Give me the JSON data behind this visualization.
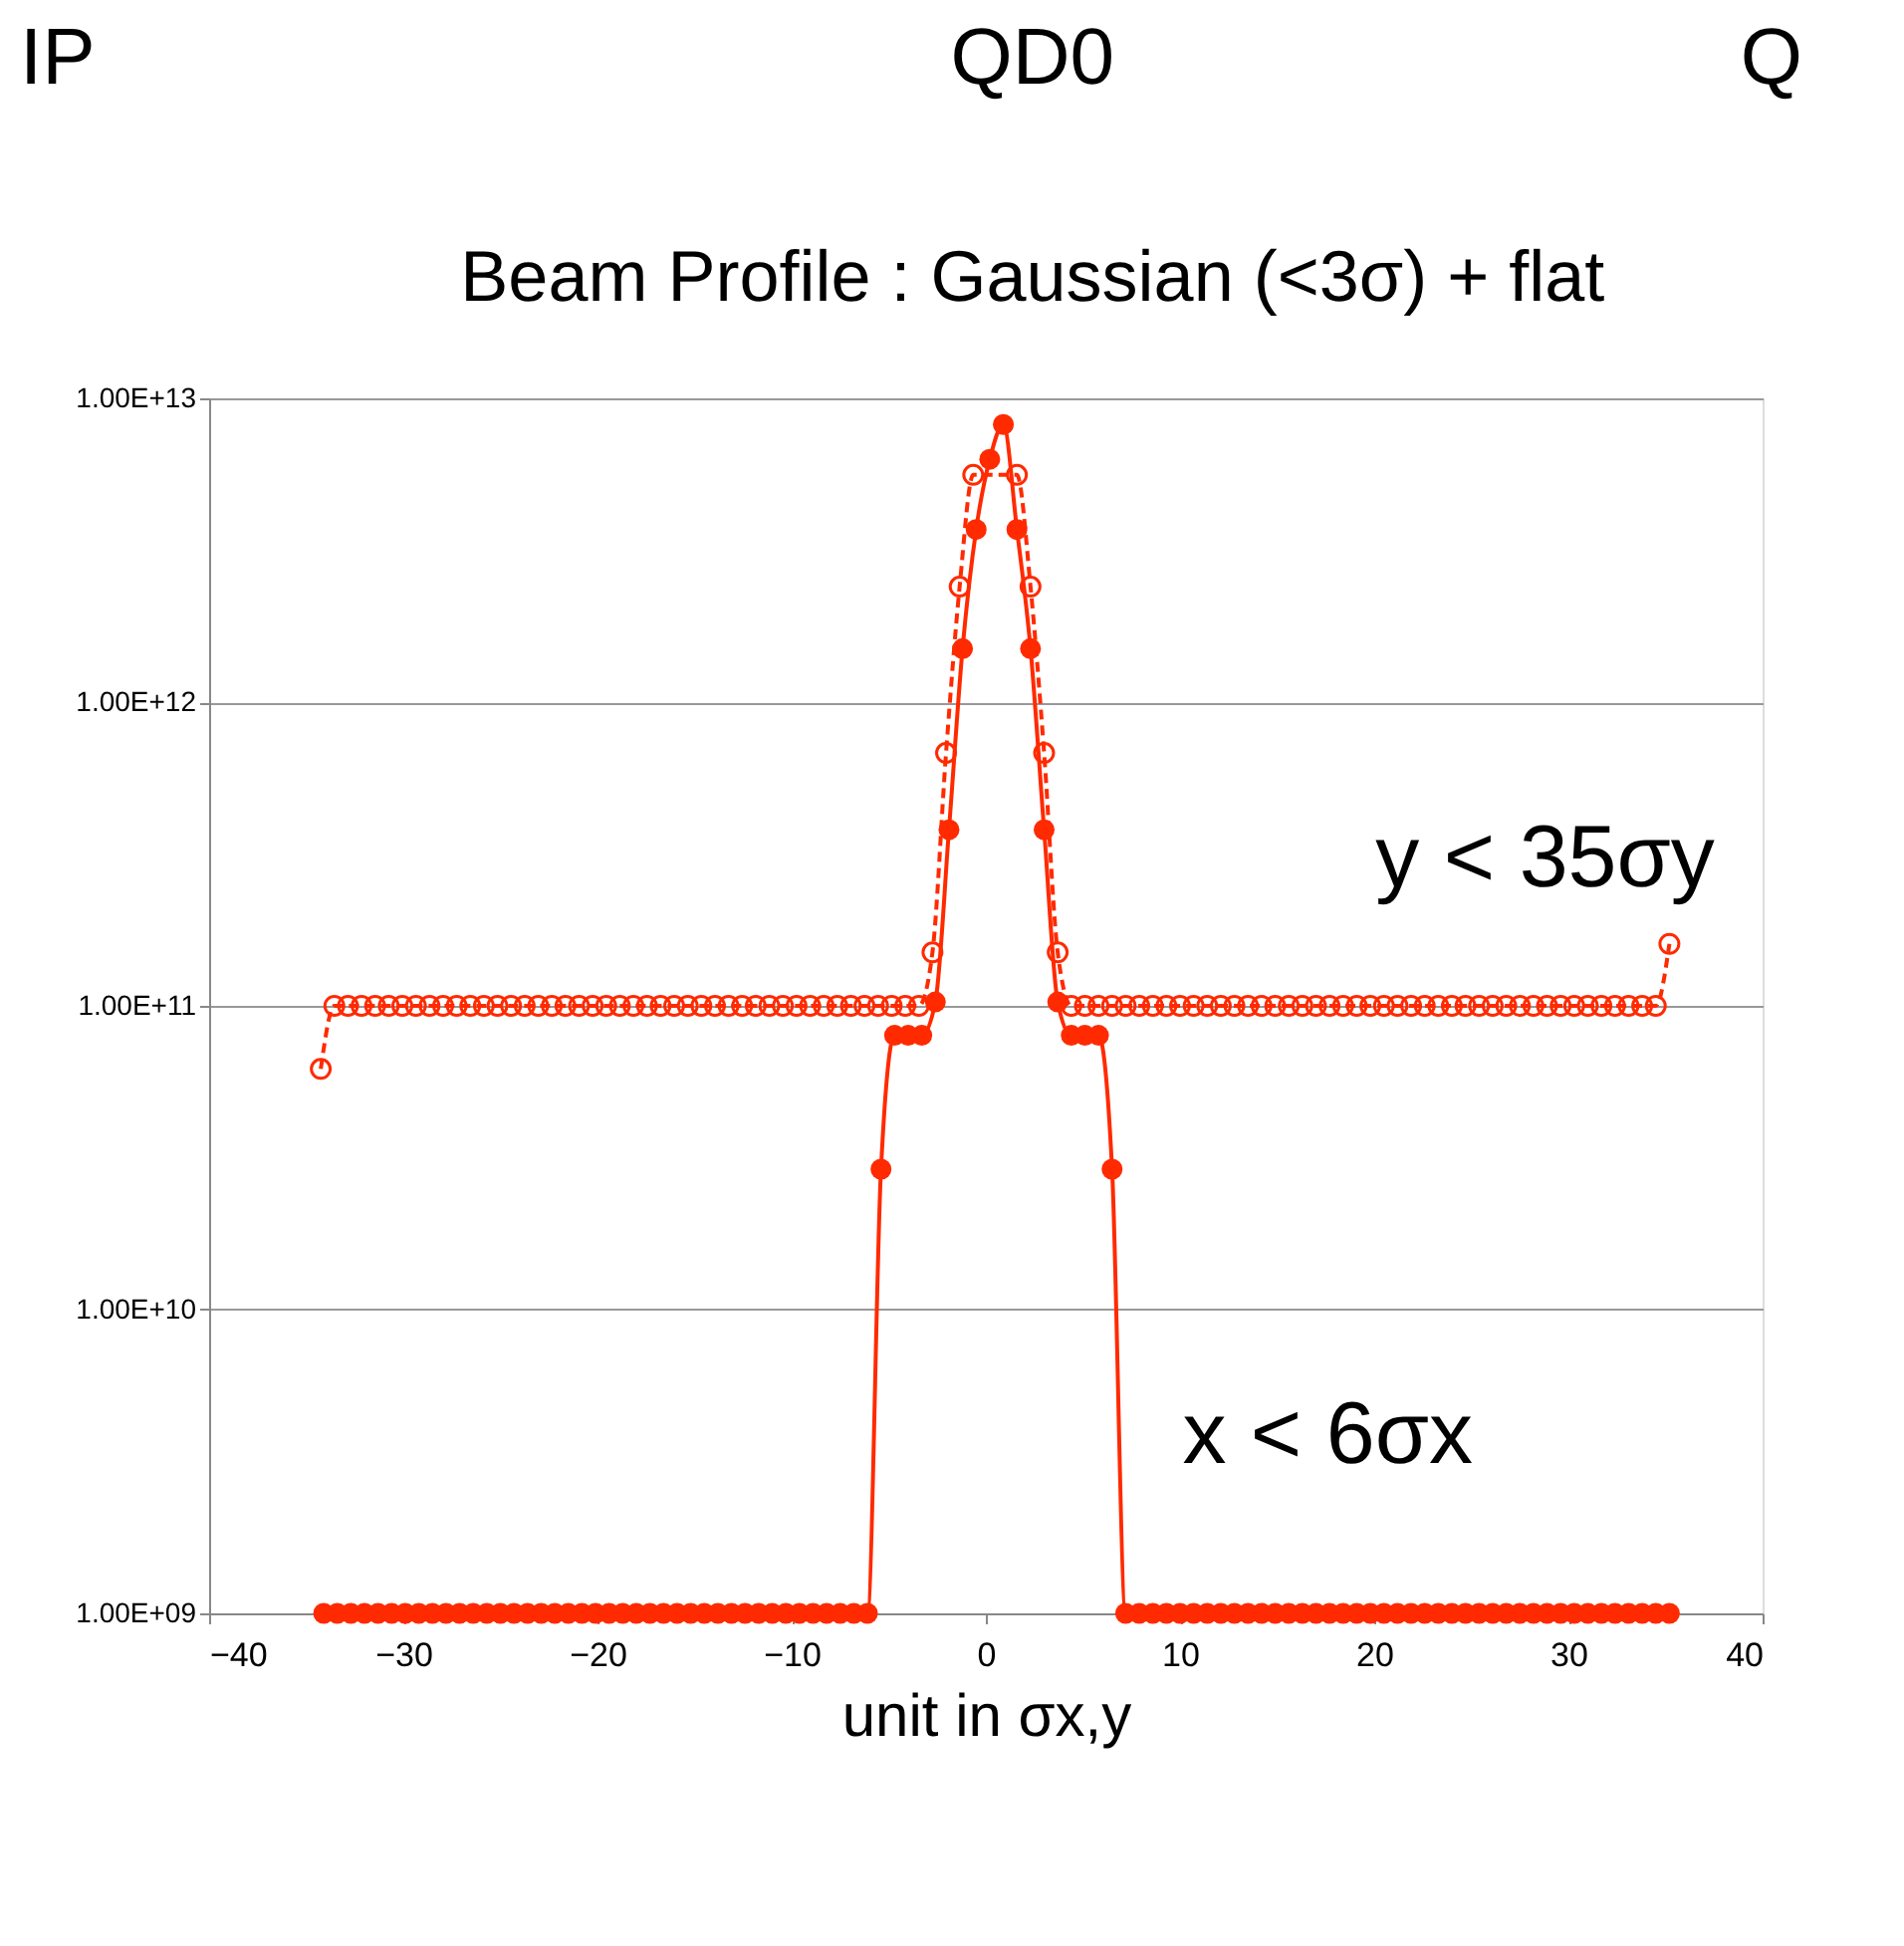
{
  "chart_data": {
    "type": "line",
    "title": "Beam Profile  : Gaussian (<3σ) + flat",
    "xlabel": "unit in σx,y",
    "annotations": [
      "IP",
      "QD0",
      "Q"
    ],
    "series": [
      {
        "name": "y < 35σy",
        "color": "#ff2a00",
        "line_style": "dashed",
        "marker": "circle",
        "x": [
          -34.25,
          -33.55,
          -32.85,
          -32.15,
          -31.45,
          -30.75,
          -30.05,
          -29.35,
          -28.65,
          -27.95,
          -27.25,
          -26.55,
          -25.85,
          -25.15,
          -24.45,
          -23.75,
          -23.05,
          -22.35,
          -21.65,
          -20.95,
          -20.25,
          -19.55,
          -18.85,
          -18.15,
          -17.45,
          -16.75,
          -16.05,
          -15.35,
          -14.65,
          -13.95,
          -13.25,
          -12.55,
          -11.85,
          -11.15,
          -10.45,
          -9.75,
          -9.05,
          -8.35,
          -7.65,
          -6.95,
          -6.25,
          -5.55,
          -4.85,
          -4.15,
          -3.45,
          -2.75,
          -2.05,
          -1.35,
          -0.65,
          1.6,
          2.3,
          3.0,
          3.7,
          4.4,
          5.1,
          5.8,
          6.5,
          7.2,
          7.9,
          8.6,
          9.3,
          10.0,
          10.7,
          11.4,
          12.1,
          12.8,
          13.5,
          14.2,
          14.9,
          15.6,
          16.3,
          17.0,
          17.7,
          18.4,
          19.1,
          19.8,
          20.5,
          21.2,
          21.9,
          22.6,
          23.3,
          24.0,
          24.7,
          25.4,
          26.1,
          26.8,
          27.5,
          28.2,
          28.9,
          29.6,
          30.3,
          31.0,
          31.7,
          32.4,
          33.1,
          33.8,
          34.5,
          35.2
        ],
        "values": [
          62000000000.0,
          100000000000.0,
          100000000000.0,
          100000000000.0,
          100000000000.0,
          100000000000.0,
          100000000000.0,
          100000000000.0,
          100000000000.0,
          100000000000.0,
          100000000000.0,
          100000000000.0,
          100000000000.0,
          100000000000.0,
          100000000000.0,
          100000000000.0,
          100000000000.0,
          100000000000.0,
          100000000000.0,
          100000000000.0,
          100000000000.0,
          100000000000.0,
          100000000000.0,
          100000000000.0,
          100000000000.0,
          100000000000.0,
          100000000000.0,
          100000000000.0,
          100000000000.0,
          100000000000.0,
          100000000000.0,
          100000000000.0,
          100000000000.0,
          100000000000.0,
          100000000000.0,
          100000000000.0,
          100000000000.0,
          100000000000.0,
          100000000000.0,
          100000000000.0,
          100000000000.0,
          100000000000.0,
          100000000000.0,
          100000000000.0,
          100000000000.0,
          150000000000.0,
          680000000000.0,
          2400000000000.0,
          5600000000000.0,
          5600000000000.0,
          2400000000000.0,
          680000000000.0,
          150000000000.0,
          100000000000.0,
          100000000000.0,
          100000000000.0,
          100000000000.0,
          100000000000.0,
          100000000000.0,
          100000000000.0,
          100000000000.0,
          100000000000.0,
          100000000000.0,
          100000000000.0,
          100000000000.0,
          100000000000.0,
          100000000000.0,
          100000000000.0,
          100000000000.0,
          100000000000.0,
          100000000000.0,
          100000000000.0,
          100000000000.0,
          100000000000.0,
          100000000000.0,
          100000000000.0,
          100000000000.0,
          100000000000.0,
          100000000000.0,
          100000000000.0,
          100000000000.0,
          100000000000.0,
          100000000000.0,
          100000000000.0,
          100000000000.0,
          100000000000.0,
          100000000000.0,
          100000000000.0,
          100000000000.0,
          100000000000.0,
          100000000000.0,
          100000000000.0,
          100000000000.0,
          100000000000.0,
          100000000000.0,
          100000000000.0,
          100000000000.0,
          160000000000.0
        ]
      },
      {
        "name": "x < 6σx",
        "color": "#ff2a00",
        "line_style": "solid",
        "marker": "circle",
        "x": [
          -34.1,
          -33.4,
          -32.7,
          -32.0,
          -31.3,
          -30.6,
          -29.9,
          -29.2,
          -28.5,
          -27.8,
          -27.1,
          -26.4,
          -25.7,
          -25.0,
          -24.3,
          -23.6,
          -22.9,
          -22.2,
          -21.5,
          -20.8,
          -20.1,
          -19.4,
          -18.7,
          -18.0,
          -17.3,
          -16.6,
          -15.9,
          -15.2,
          -14.5,
          -13.8,
          -13.1,
          -12.4,
          -11.7,
          -11.0,
          -10.3,
          -9.6,
          -8.9,
          -8.2,
          -7.5,
          -6.8,
          -6.1,
          -5.4,
          -4.7,
          -4.0,
          -3.3,
          -2.6,
          -1.9,
          -1.2,
          -0.5,
          0.2,
          0.9,
          1.6,
          2.3,
          3.0,
          3.7,
          4.4,
          5.1,
          5.8,
          6.5,
          7.2,
          7.9,
          8.6,
          9.3,
          10.0,
          10.7,
          11.4,
          12.1,
          12.8,
          13.5,
          14.2,
          14.9,
          15.6,
          16.3,
          17.0,
          17.7,
          18.4,
          19.1,
          19.8,
          20.5,
          21.2,
          21.9,
          22.6,
          23.3,
          24.0,
          24.7,
          25.4,
          26.1,
          26.8,
          27.5,
          28.2,
          28.9,
          29.6,
          30.3,
          31.0,
          31.7,
          32.4,
          33.1,
          33.8,
          34.5,
          35.2
        ],
        "values": [
          1000000000.0,
          1000000000.0,
          1000000000.0,
          1000000000.0,
          1000000000.0,
          1000000000.0,
          1000000000.0,
          1000000000.0,
          1000000000.0,
          1000000000.0,
          1000000000.0,
          1000000000.0,
          1000000000.0,
          1000000000.0,
          1000000000.0,
          1000000000.0,
          1000000000.0,
          1000000000.0,
          1000000000.0,
          1000000000.0,
          1000000000.0,
          1000000000.0,
          1000000000.0,
          1000000000.0,
          1000000000.0,
          1000000000.0,
          1000000000.0,
          1000000000.0,
          1000000000.0,
          1000000000.0,
          1000000000.0,
          1000000000.0,
          1000000000.0,
          1000000000.0,
          1000000000.0,
          1000000000.0,
          1000000000.0,
          1000000000.0,
          1000000000.0,
          1000000000.0,
          1000000000.0,
          29000000000.0,
          80000000000.0,
          80000000000.0,
          80000000000.0,
          103000000000.0,
          380000000000.0,
          1500000000000.0,
          3700000000000.0,
          6300000000000.0,
          8200000000000.0,
          3700000000000.0,
          1500000000000.0,
          380000000000.0,
          103000000000.0,
          80000000000.0,
          80000000000.0,
          80000000000.0,
          29000000000.0,
          1000000000.0,
          1000000000.0,
          1000000000.0,
          1000000000.0,
          1000000000.0,
          1000000000.0,
          1000000000.0,
          1000000000.0,
          1000000000.0,
          1000000000.0,
          1000000000.0,
          1000000000.0,
          1000000000.0,
          1000000000.0,
          1000000000.0,
          1000000000.0,
          1000000000.0,
          1000000000.0,
          1000000000.0,
          1000000000.0,
          1000000000.0,
          1000000000.0,
          1000000000.0,
          1000000000.0,
          1000000000.0,
          1000000000.0,
          1000000000.0,
          1000000000.0,
          1000000000.0,
          1000000000.0,
          1000000000.0,
          1000000000.0,
          1000000000.0,
          1000000000.0,
          1000000000.0,
          1000000000.0,
          1000000000.0,
          1000000000.0,
          1000000000.0,
          1000000000.0,
          1000000000.0
        ]
      }
    ],
    "xlim": [
      -40,
      40
    ],
    "xticks": [
      -40,
      -30,
      -20,
      -10,
      0,
      10,
      20,
      30,
      40
    ],
    "ylim": [
      1000000000.0,
      10000000000000.0
    ],
    "yticks": [
      {
        "value": 1000000000.0,
        "label": "1.00E+09"
      },
      {
        "value": 10000000000.0,
        "label": "1.00E+10"
      },
      {
        "value": 100000000000.0,
        "label": "1.00E+11"
      },
      {
        "value": 1000000000000.0,
        "label": "1.00E+12"
      },
      {
        "value": 10000000000000.0,
        "label": "1.00E+13"
      }
    ],
    "log": "y",
    "grid": "y"
  }
}
